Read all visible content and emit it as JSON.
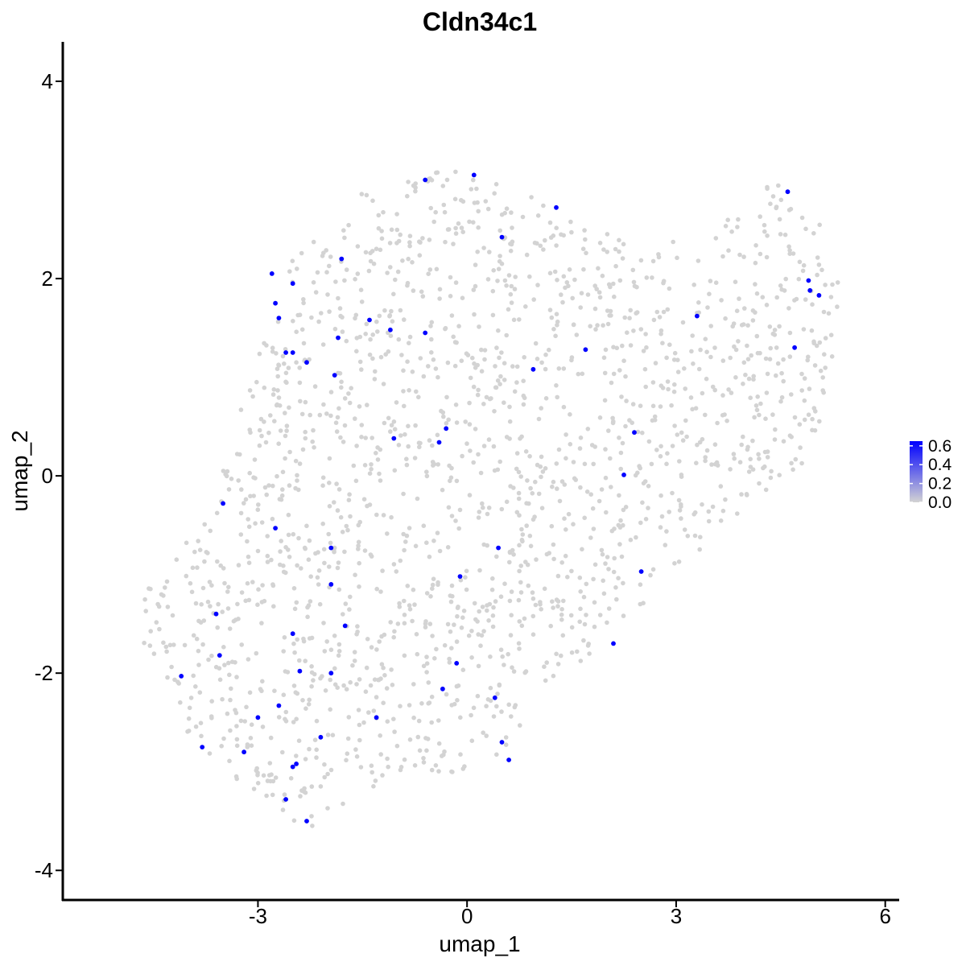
{
  "chart_data": {
    "type": "scatter",
    "title": "Cldn34c1",
    "xlabel": "umap_1",
    "ylabel": "umap_2",
    "xlim": [
      -5.8,
      6.2
    ],
    "ylim": [
      -4.3,
      4.4
    ],
    "xticks": [
      -3,
      0,
      3,
      6
    ],
    "yticks": [
      -4,
      -2,
      0,
      2,
      4
    ],
    "xtick_labels": [
      "-3",
      "0",
      "3",
      "6"
    ],
    "ytick_labels": [
      "-4",
      "-2",
      "0",
      "2",
      "4"
    ],
    "grid": false,
    "legend": {
      "placement": "right",
      "type": "colorbar",
      "range": [
        0,
        0.65
      ],
      "color_low": "#d3d3d3",
      "color_high": "#0000ff",
      "labels": [
        "0.6",
        "0.4",
        "0.2",
        "0.0"
      ],
      "label_values": [
        0.6,
        0.4,
        0.2,
        0.0
      ]
    },
    "background_cells": {
      "color": "#d3d3d3",
      "expression": 0.0,
      "count": 1800,
      "outline_upper_left_boundary": [
        [
          -4.75,
          -1.3
        ],
        [
          -4.4,
          -1.0
        ],
        [
          -3.6,
          -0.2
        ],
        [
          -3.2,
          0.8
        ],
        [
          -2.5,
          2.2
        ],
        [
          -1.5,
          2.9
        ],
        [
          0.0,
          3.15
        ],
        [
          1.3,
          2.7
        ],
        [
          2.5,
          2.3
        ],
        [
          3.5,
          2.55
        ],
        [
          4.4,
          3.0
        ],
        [
          5.2,
          2.45
        ]
      ],
      "outline_lower_right_boundary": [
        [
          5.35,
          2.0
        ],
        [
          5.2,
          0.8
        ],
        [
          4.8,
          0.0
        ],
        [
          4.0,
          -0.3
        ],
        [
          3.2,
          -0.9
        ],
        [
          2.3,
          -1.5
        ],
        [
          1.8,
          -1.8
        ],
        [
          0.9,
          -2.3
        ],
        [
          0.6,
          -3.0
        ],
        [
          0.0,
          -3.0
        ],
        [
          -1.5,
          -3.2
        ],
        [
          -2.2,
          -3.6
        ],
        [
          -3.0,
          -3.3
        ],
        [
          -4.2,
          -2.5
        ],
        [
          -4.75,
          -1.5
        ]
      ]
    },
    "series": [
      {
        "name": "expressing",
        "color": "#0000ff",
        "expression": 0.65,
        "x": [
          -0.6,
          0.1,
          1.28,
          0.5,
          4.6,
          -2.8,
          -1.8,
          -2.5,
          -2.75,
          -2.7,
          -1.4,
          -1.1,
          -0.6,
          -1.85,
          -2.6,
          -2.5,
          -2.3,
          -1.9,
          0.95,
          1.7,
          3.3,
          4.9,
          4.92,
          5.05,
          4.7,
          -1.05,
          -0.3,
          -0.4,
          2.4,
          2.25,
          -3.5,
          -2.75,
          -1.95,
          0.45,
          -1.95,
          -0.1,
          2.5,
          -3.6,
          -1.75,
          -2.5,
          -3.55,
          -4.1,
          -2.4,
          -1.95,
          -0.15,
          -0.35,
          0.4,
          -3.0,
          -2.7,
          -1.3,
          -2.1,
          -3.8,
          -3.2,
          0.5,
          0.6,
          -2.45,
          -2.5,
          -2.6,
          -2.3,
          2.1
        ],
        "y": [
          3.0,
          3.05,
          2.72,
          2.42,
          2.88,
          2.05,
          2.2,
          1.95,
          1.75,
          1.6,
          1.58,
          1.48,
          1.45,
          1.4,
          1.25,
          1.25,
          1.15,
          1.02,
          1.08,
          1.28,
          1.62,
          1.98,
          1.88,
          1.83,
          1.3,
          0.38,
          0.48,
          0.34,
          0.44,
          0.01,
          -0.28,
          -0.53,
          -0.73,
          -0.73,
          -1.1,
          -1.02,
          -0.97,
          -1.4,
          -1.52,
          -1.6,
          -1.82,
          -2.03,
          -1.98,
          -2.0,
          -1.9,
          -2.16,
          -2.25,
          -2.45,
          -2.33,
          -2.45,
          -2.65,
          -2.75,
          -2.8,
          -2.7,
          -2.88,
          -2.92,
          -2.95,
          -3.28,
          -3.5,
          -1.7
        ]
      }
    ]
  }
}
